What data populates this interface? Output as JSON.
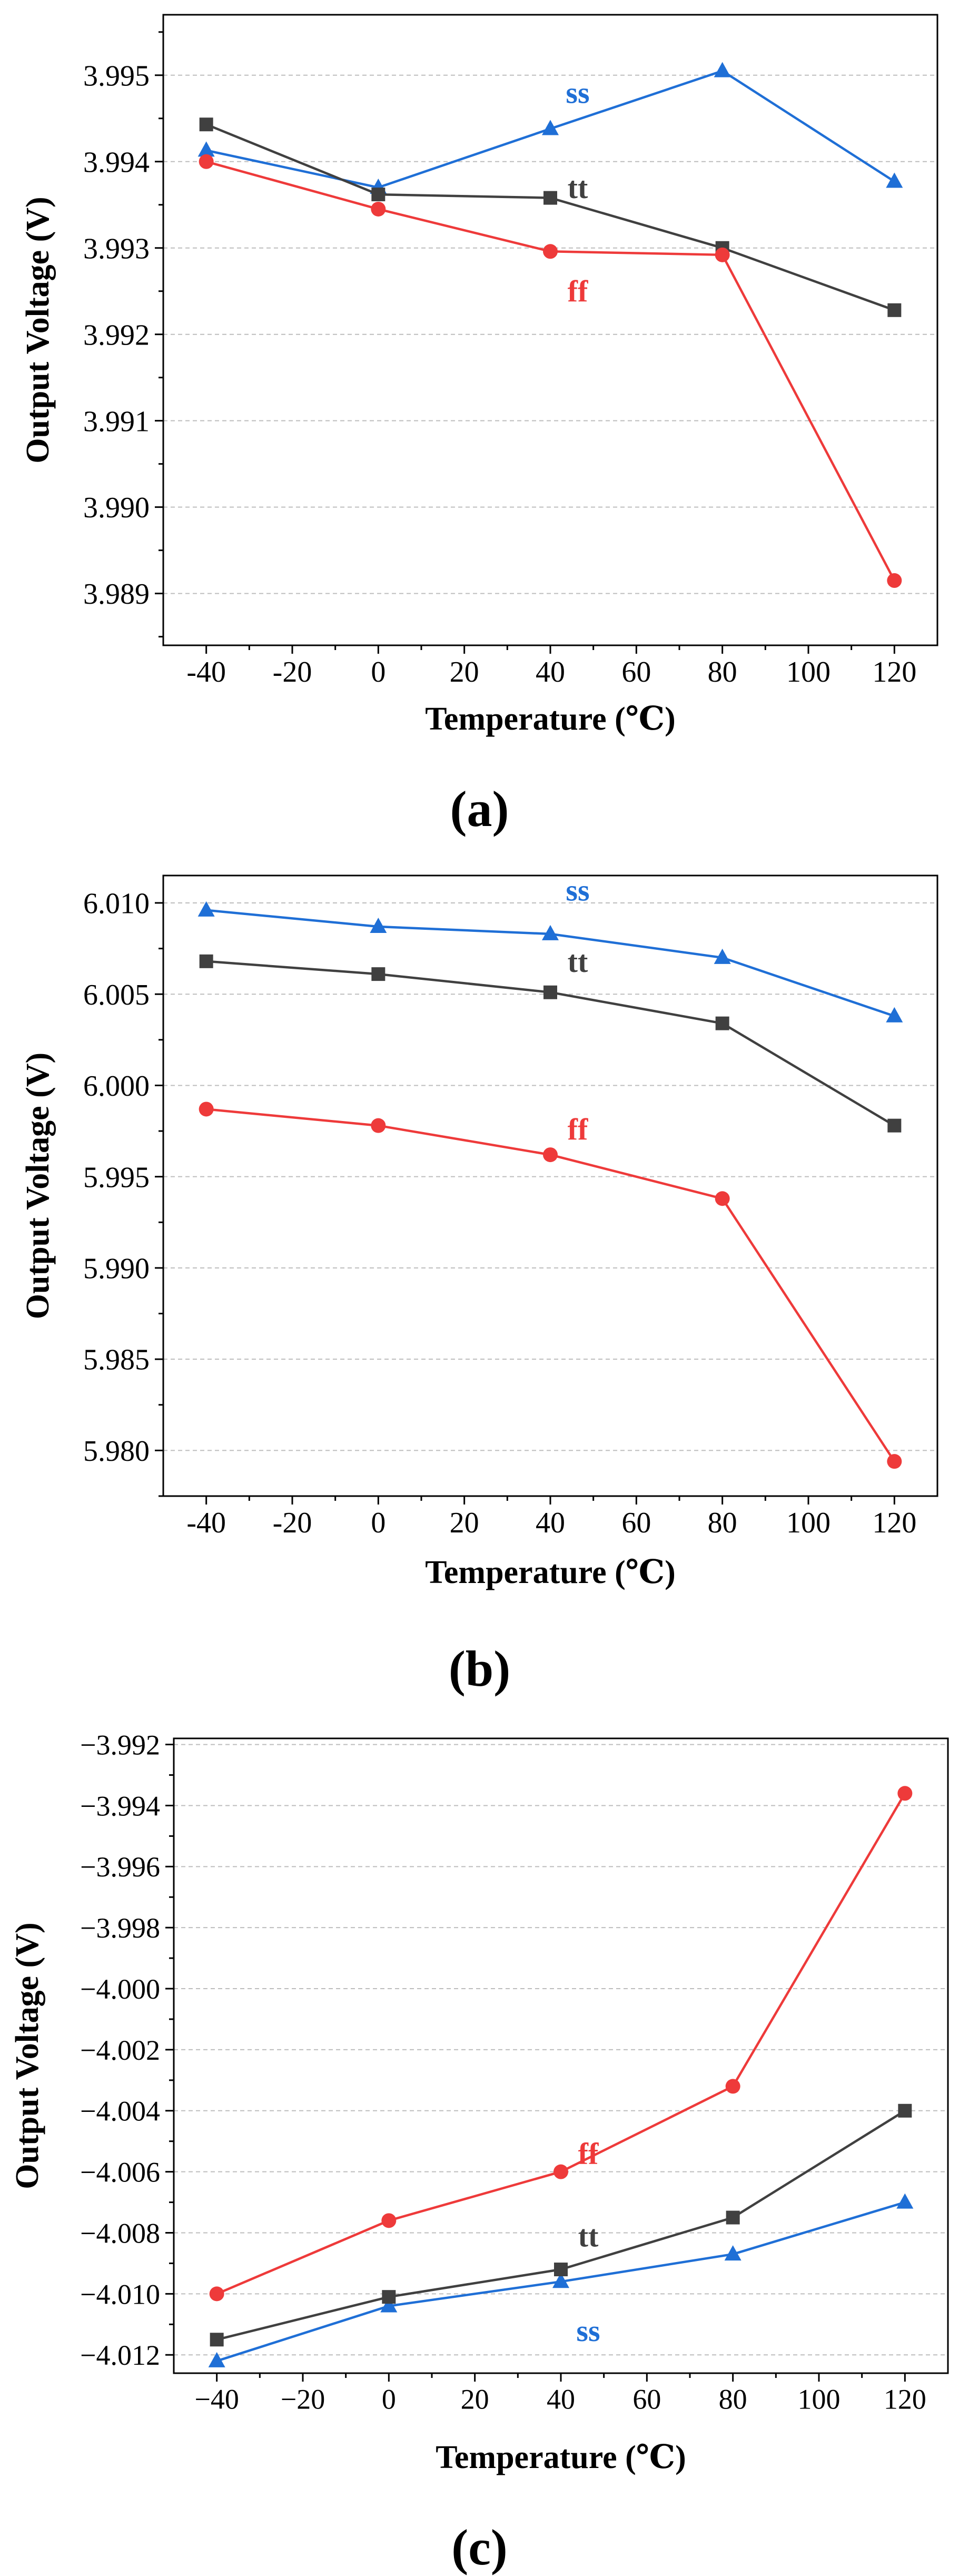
{
  "colors": {
    "ss": "#1f6fd6",
    "tt": "#404040",
    "ff": "#ee3a3a",
    "axis": "#000000",
    "grid": "#bdbdbd"
  },
  "chart_data": [
    {
      "type": "line",
      "caption": "(a)",
      "xlabel": "Temperature (℃)",
      "ylabel": "Output Voltage (V)",
      "x": [
        -40,
        0,
        40,
        80,
        120
      ],
      "xlim": [
        -50,
        130
      ],
      "xticks": [
        -40,
        -20,
        0,
        20,
        40,
        60,
        80,
        100,
        120
      ],
      "xtick_labels": [
        "-40",
        "-20",
        "0",
        "20",
        "40",
        "60",
        "80",
        "100",
        "120"
      ],
      "ylim": [
        3.9884,
        3.9957
      ],
      "yticks": [
        3.989,
        3.99,
        3.991,
        3.992,
        3.993,
        3.994,
        3.995
      ],
      "ytick_labels": [
        "3.989",
        "3.990",
        "3.991",
        "3.992",
        "3.993",
        "3.994",
        "3.995"
      ],
      "grid": true,
      "series": [
        {
          "name": "ss",
          "marker": "triangle",
          "values": [
            3.99413,
            3.9937,
            3.99438,
            3.99505,
            3.99377
          ],
          "label_at": [
            40,
            3.9948
          ]
        },
        {
          "name": "tt",
          "marker": "square",
          "values": [
            3.99443,
            3.99362,
            3.99358,
            3.993,
            3.99228
          ],
          "label_at": [
            40,
            3.9937
          ]
        },
        {
          "name": "ff",
          "marker": "circle",
          "values": [
            3.994,
            3.99345,
            3.99296,
            3.99292,
            3.98915
          ],
          "label_at": [
            40,
            3.9925
          ]
        }
      ]
    },
    {
      "type": "line",
      "caption": "(b)",
      "xlabel": "Temperature (℃)",
      "ylabel": "Output Voltage (V)",
      "x": [
        -40,
        0,
        40,
        80,
        120
      ],
      "xlim": [
        -50,
        130
      ],
      "xticks": [
        -40,
        -20,
        0,
        20,
        40,
        60,
        80,
        100,
        120
      ],
      "xtick_labels": [
        "-40",
        "-20",
        "0",
        "20",
        "40",
        "60",
        "80",
        "100",
        "120"
      ],
      "ylim": [
        5.9775,
        6.0115
      ],
      "yticks": [
        5.98,
        5.985,
        5.99,
        5.995,
        6.0,
        6.005,
        6.01
      ],
      "ytick_labels": [
        "5.980",
        "5.985",
        "5.990",
        "5.995",
        "6.000",
        "6.005",
        "6.010"
      ],
      "grid": true,
      "series": [
        {
          "name": "ss",
          "marker": "triangle",
          "values": [
            6.0096,
            6.0087,
            6.0083,
            6.007,
            6.0038
          ],
          "label_at": [
            40,
            6.0107
          ]
        },
        {
          "name": "tt",
          "marker": "square",
          "values": [
            6.0068,
            6.0061,
            6.0051,
            6.0034,
            5.9978
          ],
          "label_at": [
            40,
            6.0068
          ]
        },
        {
          "name": "ff",
          "marker": "circle",
          "values": [
            5.9987,
            5.9978,
            5.9962,
            5.9938,
            5.9794
          ],
          "label_at": [
            40,
            5.9976
          ]
        }
      ]
    },
    {
      "type": "line",
      "caption": "(c)",
      "xlabel": "Temperature (℃)",
      "ylabel": "Output Voltage (V)",
      "x": [
        -40,
        0,
        40,
        80,
        120
      ],
      "xlim": [
        -50,
        130
      ],
      "xticks": [
        -40,
        -20,
        0,
        20,
        40,
        60,
        80,
        100,
        120
      ],
      "xtick_labels": [
        "−40",
        "−20",
        "0",
        "20",
        "40",
        "60",
        "80",
        "100",
        "120"
      ],
      "ylim": [
        -4.0126,
        -3.9918
      ],
      "yticks": [
        -4.012,
        -4.01,
        -4.008,
        -4.006,
        -4.004,
        -4.002,
        -4.0,
        -3.998,
        -3.996,
        -3.994,
        -3.992
      ],
      "ytick_labels": [
        "−4.012",
        "−4.010",
        "−4.008",
        "−4.006",
        "−4.004",
        "−4.002",
        "−4.000",
        "−3.998",
        "−3.996",
        "−3.994",
        "−3.992"
      ],
      "grid": true,
      "series": [
        {
          "name": "ss",
          "marker": "triangle",
          "values": [
            -4.0122,
            -4.0104,
            -4.0096,
            -4.0087,
            -4.007
          ],
          "label_at": [
            40,
            -4.0112
          ]
        },
        {
          "name": "tt",
          "marker": "square",
          "values": [
            -4.0115,
            -4.0101,
            -4.0092,
            -4.0075,
            -4.004
          ],
          "label_at": [
            40,
            -4.0081
          ]
        },
        {
          "name": "ff",
          "marker": "circle",
          "values": [
            -4.01,
            -4.0076,
            -4.006,
            -4.0032,
            -3.9936
          ],
          "label_at": [
            40,
            -4.0054
          ]
        }
      ]
    }
  ]
}
